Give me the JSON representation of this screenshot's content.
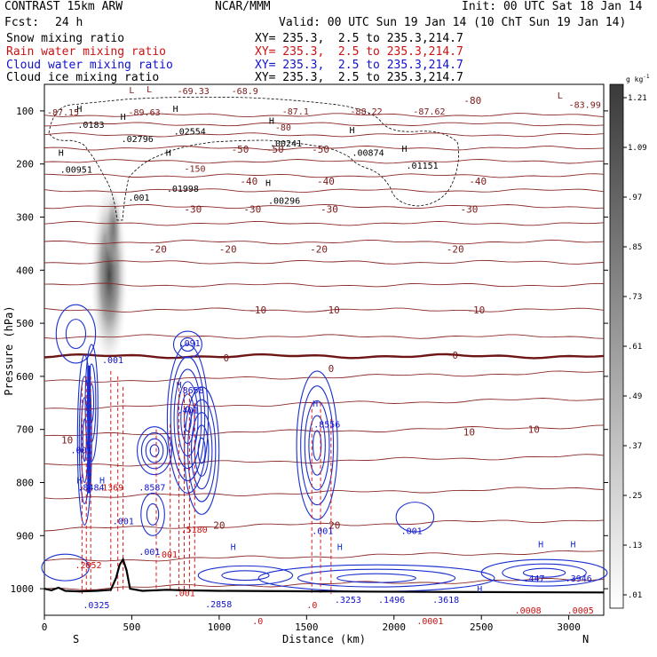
{
  "header": {
    "title": "CONTRAST 15km ARW",
    "center": "NCAR/MMM",
    "init": "Init: 00 UTC Sat 18 Jan 14",
    "fcst_label": "Fcst:",
    "fcst_value": "24 h",
    "valid": "Valid: 00 UTC Sun 19 Jan 14 (10 ChT Sun 19 Jan 14)"
  },
  "legend": [
    {
      "name": "Snow mixing ratio",
      "xy": "XY= 235.3,  2.5 to 235.3,214.7",
      "color": "#000000"
    },
    {
      "name": "Rain water mixing ratio",
      "xy": "XY= 235.3,  2.5 to 235.3,214.7",
      "color": "#cc1111"
    },
    {
      "name": "Cloud water mixing ratio",
      "xy": "XY= 235.3,  2.5 to 235.3,214.7",
      "color": "#1111cc"
    },
    {
      "name": "Cloud ice mixing ratio",
      "xy": "XY= 235.3,  2.5 to 235.3,214.7",
      "color": "#000000"
    }
  ],
  "chart_data": {
    "type": "heatmap",
    "xlabel": "Distance (km)",
    "ylabel": "Pressure (hPa)",
    "xlim": [
      0,
      3200
    ],
    "ylim": [
      1050,
      50
    ],
    "x_ticks": [
      0,
      500,
      1000,
      1500,
      2000,
      2500,
      3000
    ],
    "y_ticks": [
      100,
      200,
      300,
      400,
      500,
      600,
      700,
      800,
      900,
      1000
    ],
    "x_end_labels": {
      "left": "S",
      "right": "N"
    },
    "colorbar": {
      "unit": "g kg",
      "unit_exp": "-1",
      "ticks": [
        ".01",
        ".13",
        ".25",
        ".37",
        ".49",
        ".61",
        ".73",
        ".85",
        ".97",
        "1.09",
        "1.21"
      ]
    },
    "temperature_contours": [
      {
        "value": -80,
        "label": "-80",
        "x": 2450,
        "p": 80
      },
      {
        "value": -50,
        "label": "-50",
        "x": 1120,
        "p": 172
      },
      {
        "value": -50,
        "label": "-50",
        "x": 1320,
        "p": 172
      },
      {
        "value": -50,
        "label": "-50",
        "x": 1580,
        "p": 172
      },
      {
        "value": -40,
        "label": "-40",
        "x": 1170,
        "p": 232
      },
      {
        "value": -40,
        "label": "-40",
        "x": 1610,
        "p": 232
      },
      {
        "value": -40,
        "label": "-40",
        "x": 2480,
        "p": 232
      },
      {
        "value": -30,
        "label": "-30",
        "x": 850,
        "p": 285
      },
      {
        "value": -30,
        "label": "-30",
        "x": 1190,
        "p": 285
      },
      {
        "value": -30,
        "label": "-30",
        "x": 1630,
        "p": 285
      },
      {
        "value": -30,
        "label": "-30",
        "x": 2430,
        "p": 285
      },
      {
        "value": -20,
        "label": "-20",
        "x": 650,
        "p": 360
      },
      {
        "value": -20,
        "label": "-20",
        "x": 1050,
        "p": 360
      },
      {
        "value": -20,
        "label": "-20",
        "x": 1570,
        "p": 360
      },
      {
        "value": -20,
        "label": "-20",
        "x": 2350,
        "p": 360
      },
      {
        "value": -10,
        "label": "-10",
        "x": 1220,
        "p": 475
      },
      {
        "value": -10,
        "label": "-10",
        "x": 1640,
        "p": 475
      },
      {
        "value": -10,
        "label": "-10",
        "x": 2470,
        "p": 475
      },
      {
        "value": 0,
        "label": "0",
        "x": 1040,
        "p": 565
      },
      {
        "value": 0,
        "label": "0",
        "x": 1640,
        "p": 585
      },
      {
        "value": 0,
        "label": "0",
        "x": 2350,
        "p": 560
      },
      {
        "value": 10,
        "label": "10",
        "x": 130,
        "p": 720
      },
      {
        "value": 10,
        "label": "10",
        "x": 2430,
        "p": 705
      },
      {
        "value": 10,
        "label": "10",
        "x": 2800,
        "p": 700
      },
      {
        "value": 20,
        "label": "20",
        "x": 1000,
        "p": 880
      },
      {
        "value": 20,
        "label": "20",
        "x": 1660,
        "p": 880
      }
    ],
    "pressure_levels_of_isotherms": [
      108,
      125,
      145,
      170,
      195,
      222,
      250,
      280,
      312,
      347,
      385,
      428,
      475,
      525,
      562,
      610,
      660,
      712,
      768,
      828,
      888,
      948,
      1000
    ],
    "highs_lows": [
      {
        "label": "L",
        "x": 500,
        "p": 60
      },
      {
        "label": "L",
        "x": 2950,
        "p": 70
      },
      {
        "label": "L",
        "x": 600,
        "p": 58
      },
      {
        "label": "H",
        "x": 200,
        "p": 95
      },
      {
        "label": "H",
        "x": 450,
        "p": 110
      },
      {
        "label": "H",
        "x": 750,
        "p": 95
      },
      {
        "label": "H",
        "x": 1300,
        "p": 118
      },
      {
        "label": "H",
        "x": 1760,
        "p": 135
      },
      {
        "label": "H",
        "x": 2060,
        "p": 170
      },
      {
        "label": "H",
        "x": 95,
        "p": 178
      },
      {
        "label": "H",
        "x": 710,
        "p": 178
      },
      {
        "label": "H",
        "x": 1280,
        "p": 235
      },
      {
        "label": "H",
        "x": 200,
        "p": 795
      },
      {
        "label": "H",
        "x": 330,
        "p": 795
      },
      {
        "label": "H",
        "x": 770,
        "p": 615
      },
      {
        "label": "H",
        "x": 1550,
        "p": 650
      },
      {
        "label": "H",
        "x": 1080,
        "p": 920
      },
      {
        "label": "H",
        "x": 1690,
        "p": 920
      },
      {
        "label": "H",
        "x": 2840,
        "p": 915
      },
      {
        "label": "H",
        "x": 3025,
        "p": 915
      },
      {
        "label": "H",
        "x": 2490,
        "p": 1000
      }
    ],
    "value_labels": [
      {
        "text": "-87.15",
        "x": 15,
        "p": 102,
        "color": "#7b1a1a"
      },
      {
        "text": "-89.63",
        "x": 480,
        "p": 102,
        "color": "#7b1a1a"
      },
      {
        "text": "-69.33",
        "x": 760,
        "p": 62,
        "color": "#7b1a1a"
      },
      {
        "text": "-68.9",
        "x": 1070,
        "p": 62,
        "color": "#7b1a1a"
      },
      {
        "text": "-87.1",
        "x": 1360,
        "p": 100,
        "color": "#7b1a1a"
      },
      {
        "text": "-88.22",
        "x": 1750,
        "p": 100,
        "color": "#7b1a1a"
      },
      {
        "text": "-87.62",
        "x": 2110,
        "p": 100,
        "color": "#7b1a1a"
      },
      {
        "text": "-83.99",
        "x": 3000,
        "p": 88,
        "color": "#7b1a1a"
      },
      {
        "text": ".0183",
        "x": 190,
        "p": 125,
        "color": "#000000"
      },
      {
        "text": ".02796",
        "x": 440,
        "p": 152,
        "color": "#000000"
      },
      {
        "text": ".02554",
        "x": 740,
        "p": 138,
        "color": "#000000"
      },
      {
        "text": ".00241",
        "x": 1290,
        "p": 160,
        "color": "#000000"
      },
      {
        "text": ".00874",
        "x": 1760,
        "p": 178,
        "color": "#000000"
      },
      {
        "text": ".01151",
        "x": 2070,
        "p": 202,
        "color": "#000000"
      },
      {
        "text": ".00951",
        "x": 90,
        "p": 210,
        "color": "#000000"
      },
      {
        "text": ".001",
        "x": 480,
        "p": 262,
        "color": "#000000"
      },
      {
        "text": ".01998",
        "x": 700,
        "p": 246,
        "color": "#000000"
      },
      {
        "text": ".00296",
        "x": 1280,
        "p": 268,
        "color": "#000000"
      },
      {
        "text": "-150",
        "x": 800,
        "p": 208,
        "color": "#7b1a1a"
      },
      {
        "text": "-80",
        "x": 1320,
        "p": 130,
        "color": "#7b1a1a"
      },
      {
        "text": ".091",
        "x": 770,
        "p": 537,
        "color": "#1111cc"
      },
      {
        "text": ".001",
        "x": 330,
        "p": 568,
        "color": "#1111cc"
      },
      {
        "text": ".8658",
        "x": 760,
        "p": 625,
        "color": "#1111cc"
      },
      {
        "text": ".401",
        "x": 760,
        "p": 663,
        "color": "#1111cc"
      },
      {
        "text": ".8556",
        "x": 1540,
        "p": 690,
        "color": "#1111cc"
      },
      {
        "text": ".001",
        "x": 150,
        "p": 738,
        "color": "#1111cc"
      },
      {
        "text": ".8484",
        "x": 190,
        "p": 808,
        "color": "#1111cc"
      },
      {
        "text": ".8587",
        "x": 540,
        "p": 808,
        "color": "#1111cc"
      },
      {
        "text": ".001",
        "x": 390,
        "p": 872,
        "color": "#1111cc"
      },
      {
        "text": ".001",
        "x": 540,
        "p": 930,
        "color": "#1111cc"
      },
      {
        "text": ".001",
        "x": 1530,
        "p": 890,
        "color": "#1111cc"
      },
      {
        "text": ".001",
        "x": 2040,
        "p": 890,
        "color": "#1111cc"
      },
      {
        "text": ".0325",
        "x": 220,
        "p": 1030,
        "color": "#1111cc"
      },
      {
        "text": ".2858",
        "x": 920,
        "p": 1028,
        "color": "#1111cc"
      },
      {
        "text": ".3253",
        "x": 1660,
        "p": 1020,
        "color": "#1111cc"
      },
      {
        "text": ".1496",
        "x": 1910,
        "p": 1020,
        "color": "#1111cc"
      },
      {
        "text": ".3618",
        "x": 2220,
        "p": 1020,
        "color": "#1111cc"
      },
      {
        "text": ".447",
        "x": 2740,
        "p": 980,
        "color": "#1111cc"
      },
      {
        "text": ".3946",
        "x": 2980,
        "p": 980,
        "color": "#1111cc"
      },
      {
        "text": ".1369",
        "x": 300,
        "p": 808,
        "color": "#cc1111"
      },
      {
        "text": ".001",
        "x": 640,
        "p": 935,
        "color": "#cc1111"
      },
      {
        "text": ".001",
        "x": 740,
        "p": 1007,
        "color": "#cc1111"
      },
      {
        "text": ".5180",
        "x": 780,
        "p": 888,
        "color": "#cc1111"
      },
      {
        "text": ".2852",
        "x": 175,
        "p": 955,
        "color": "#cc1111"
      },
      {
        "text": ".0",
        "x": 1190,
        "p": 1060,
        "color": "#cc1111"
      },
      {
        "text": ".0",
        "x": 1500,
        "p": 1030,
        "color": "#cc1111"
      },
      {
        "text": ".0001",
        "x": 2130,
        "p": 1060,
        "color": "#cc1111"
      },
      {
        "text": ".0008",
        "x": 2690,
        "p": 1040,
        "color": "#cc1111"
      },
      {
        "text": ".0005",
        "x": 2990,
        "p": 1040,
        "color": "#cc1111"
      }
    ]
  }
}
